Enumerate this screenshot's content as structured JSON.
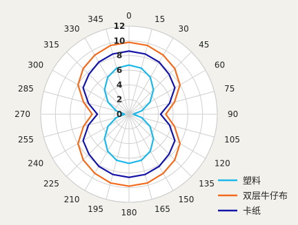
{
  "chart_data": {
    "type": "polar-line",
    "title": "",
    "angular_axis": {
      "direction": "clockwise",
      "zero": "top",
      "ticks": [
        0,
        15,
        30,
        45,
        60,
        75,
        90,
        105,
        120,
        135,
        150,
        165,
        180,
        195,
        210,
        225,
        240,
        255,
        270,
        285,
        300,
        315,
        330,
        345
      ],
      "tick_labels": [
        "0",
        "15",
        "30",
        "45",
        "60",
        "75",
        "90",
        "105",
        "120",
        "135",
        "150",
        "165",
        "180",
        "195",
        "210",
        "225",
        "240",
        "255",
        "270",
        "285",
        "300",
        "315",
        "330",
        "345"
      ]
    },
    "radial_axis": {
      "range": [
        0,
        12
      ],
      "ticks": [
        0,
        2,
        4,
        6,
        8,
        10,
        12
      ],
      "tick_labels": [
        "0",
        "2",
        "4",
        "6",
        "8",
        "10",
        "12"
      ]
    },
    "grid": true,
    "legend_position": "bottom-right",
    "theta": [
      0,
      15,
      30,
      45,
      60,
      75,
      90,
      105,
      120,
      135,
      150,
      165,
      180,
      195,
      210,
      225,
      240,
      255,
      270,
      285,
      300,
      315,
      330,
      345
    ],
    "series": [
      {
        "name": "塑料",
        "color": "#1ab8ea",
        "values": [
          6.7,
          6.5,
          5.8,
          4.7,
          3.3,
          1.8,
          0.6,
          1.8,
          3.3,
          4.7,
          5.8,
          6.5,
          6.7,
          6.5,
          5.8,
          4.7,
          3.3,
          1.8,
          0.6,
          1.8,
          3.3,
          4.7,
          5.8,
          6.5
        ]
      },
      {
        "name": "双层牛仔布",
        "color": "#f26a1b",
        "values": [
          9.8,
          9.7,
          9.3,
          8.8,
          8.0,
          6.4,
          5.0,
          6.4,
          8.0,
          8.8,
          9.3,
          9.7,
          9.8,
          9.7,
          9.3,
          8.8,
          8.0,
          6.4,
          5.0,
          6.4,
          8.0,
          8.8,
          9.3,
          9.7
        ]
      },
      {
        "name": "卡纸",
        "color": "#1414a8",
        "values": [
          8.6,
          8.5,
          8.2,
          7.7,
          7.2,
          5.7,
          4.3,
          5.7,
          7.2,
          7.7,
          8.2,
          8.5,
          8.6,
          8.5,
          8.2,
          7.7,
          7.2,
          5.7,
          4.3,
          5.7,
          7.2,
          7.7,
          8.2,
          8.5
        ]
      }
    ]
  }
}
